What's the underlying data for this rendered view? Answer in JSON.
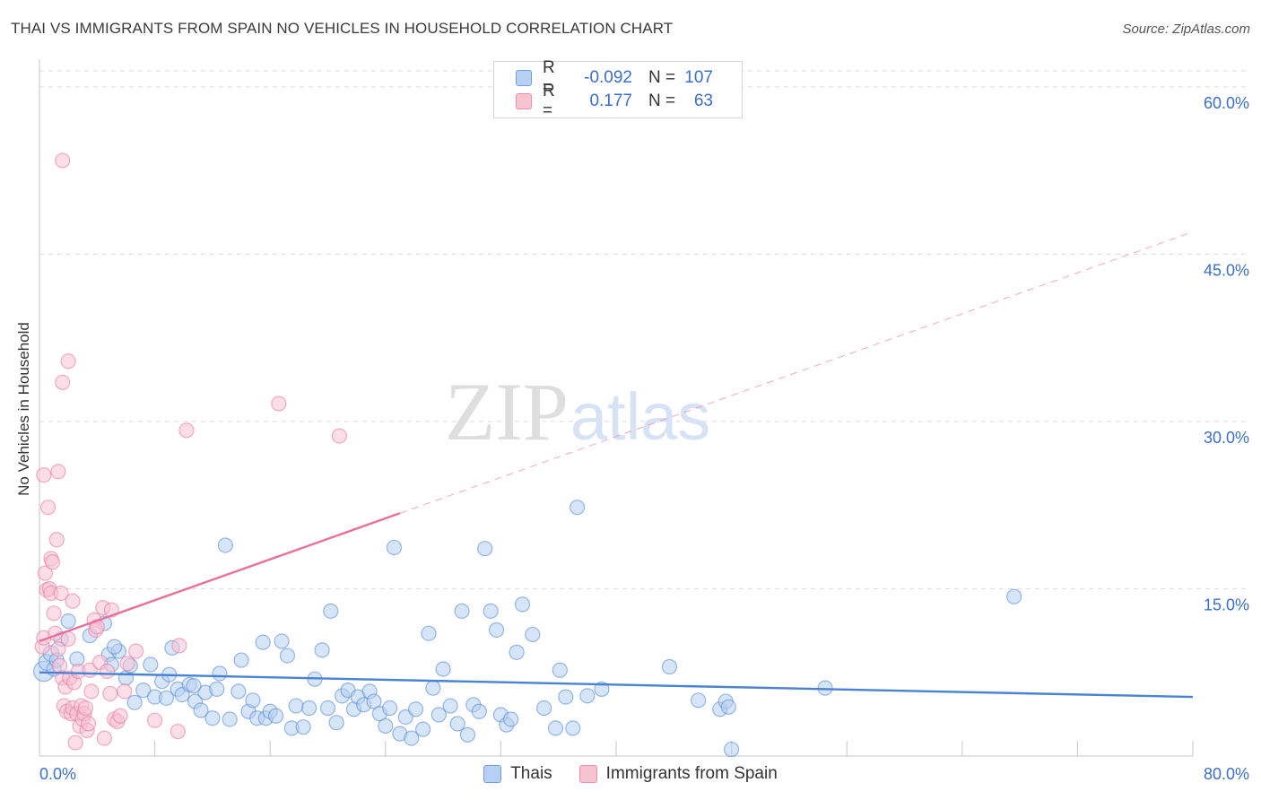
{
  "title": "THAI VS IMMIGRANTS FROM SPAIN NO VEHICLES IN HOUSEHOLD CORRELATION CHART",
  "source": "Source: ZipAtlas.com",
  "watermark": {
    "zip": "ZIP",
    "atlas": "atlas"
  },
  "legend": {
    "r_label": "R =",
    "n_label": "N =",
    "rows": [
      {
        "name": "Thais",
        "r": "-0.092",
        "n": "107",
        "fill": "#b7cff2",
        "stroke": "#6f9fe0"
      },
      {
        "name": "Immigrants from Spain",
        "r": "0.177",
        "n": "63",
        "fill": "#f7c3d3",
        "stroke": "#ec8fae"
      }
    ]
  },
  "chart_data": {
    "type": "scatter",
    "title": "THAI VS IMMIGRANTS FROM SPAIN NO VEHICLES IN HOUSEHOLD CORRELATION CHART",
    "xlabel": "",
    "ylabel": "No Vehicles in Household",
    "xlim": [
      0,
      80
    ],
    "ylim": [
      0,
      62
    ],
    "x_tick_labels": [
      {
        "value": 0,
        "label": "0.0%"
      },
      {
        "value": 80,
        "label": "80.0%"
      }
    ],
    "y_tick_labels": [
      {
        "value": 15,
        "label": "15.0%"
      },
      {
        "value": 30,
        "label": "30.0%"
      },
      {
        "value": 45,
        "label": "45.0%"
      },
      {
        "value": 60,
        "label": "60.0%"
      }
    ],
    "x_minor_ticks": [
      8,
      16,
      24,
      32,
      40,
      48,
      56,
      64,
      72,
      80
    ],
    "series": [
      {
        "name": "Thais",
        "color": "#4a83d4",
        "fill": "#b7cff2",
        "trend": {
          "x0": 0,
          "y0": 7.5,
          "x1": 80,
          "y1": 5.3,
          "dash_from": null
        },
        "points": [
          [
            0.3,
            7.6,
            1.4
          ],
          [
            0.5,
            8.4,
            1.1
          ],
          [
            0.8,
            9.2,
            1.1
          ],
          [
            1.0,
            7.8,
            1.0
          ],
          [
            1.2,
            8.6,
            1.0
          ],
          [
            1.5,
            10.5,
            1.0
          ],
          [
            2.0,
            12.1,
            1.0
          ],
          [
            2.6,
            8.7,
            1.0
          ],
          [
            3.5,
            10.8,
            1.0
          ],
          [
            4.5,
            11.9,
            1.0
          ],
          [
            4.8,
            9.1,
            1.0
          ],
          [
            5.0,
            8.2,
            1.0
          ],
          [
            5.5,
            9.4,
            1.0
          ],
          [
            5.2,
            9.8,
            1.0
          ],
          [
            6.0,
            7.0,
            1.0
          ],
          [
            6.3,
            8.1,
            1.0
          ],
          [
            6.6,
            4.8,
            1.0
          ],
          [
            7.2,
            5.9,
            1.0
          ],
          [
            7.7,
            8.2,
            1.0
          ],
          [
            8.0,
            5.3,
            1.0
          ],
          [
            8.5,
            6.7,
            1.0
          ],
          [
            8.8,
            5.2,
            1.0
          ],
          [
            9.2,
            9.7,
            1.0
          ],
          [
            9.0,
            7.3,
            1.0
          ],
          [
            9.6,
            6.0,
            1.0
          ],
          [
            9.9,
            5.5,
            1.0
          ],
          [
            10.4,
            6.4,
            1.0
          ],
          [
            10.8,
            4.9,
            1.0
          ],
          [
            11.2,
            4.1,
            1.0
          ],
          [
            11.5,
            5.7,
            1.0
          ],
          [
            12.0,
            3.4,
            1.0
          ],
          [
            12.3,
            6.0,
            1.0
          ],
          [
            12.5,
            7.4,
            1.0
          ],
          [
            12.9,
            18.9,
            1.0
          ],
          [
            13.2,
            3.3,
            1.0
          ],
          [
            13.8,
            5.8,
            1.0
          ],
          [
            14.0,
            8.6,
            1.0
          ],
          [
            14.5,
            4.0,
            1.0
          ],
          [
            14.8,
            5.0,
            1.0
          ],
          [
            15.1,
            3.4,
            1.0
          ],
          [
            15.5,
            10.2,
            1.0
          ],
          [
            15.7,
            3.4,
            1.0
          ],
          [
            16.0,
            4.0,
            1.0
          ],
          [
            16.4,
            3.6,
            1.0
          ],
          [
            16.8,
            10.3,
            1.0
          ],
          [
            17.2,
            9.0,
            1.0
          ],
          [
            17.5,
            2.5,
            1.0
          ],
          [
            17.8,
            4.5,
            1.0
          ],
          [
            18.3,
            2.6,
            1.0
          ],
          [
            18.7,
            4.3,
            1.0
          ],
          [
            19.1,
            6.9,
            1.0
          ],
          [
            19.6,
            9.5,
            1.0
          ],
          [
            20.0,
            4.3,
            1.0
          ],
          [
            20.2,
            13.0,
            1.0
          ],
          [
            20.6,
            3.0,
            1.0
          ],
          [
            21.0,
            5.4,
            1.0
          ],
          [
            21.4,
            5.9,
            1.0
          ],
          [
            21.8,
            4.2,
            1.0
          ],
          [
            22.1,
            5.3,
            1.0
          ],
          [
            22.5,
            4.6,
            1.0
          ],
          [
            22.9,
            5.8,
            1.0
          ],
          [
            23.2,
            4.9,
            1.0
          ],
          [
            23.6,
            3.8,
            1.0
          ],
          [
            24.0,
            2.7,
            1.0
          ],
          [
            24.3,
            4.3,
            1.0
          ],
          [
            24.6,
            18.7,
            1.0
          ],
          [
            25.0,
            2.0,
            1.0
          ],
          [
            25.4,
            3.5,
            1.0
          ],
          [
            25.8,
            1.6,
            1.0
          ],
          [
            26.1,
            4.2,
            1.0
          ],
          [
            26.6,
            2.4,
            1.0
          ],
          [
            27.0,
            11.0,
            1.0
          ],
          [
            27.3,
            6.1,
            1.0
          ],
          [
            27.7,
            3.7,
            1.0
          ],
          [
            28.0,
            7.8,
            1.0
          ],
          [
            28.5,
            4.5,
            1.0
          ],
          [
            29.0,
            2.9,
            1.0
          ],
          [
            29.3,
            13.0,
            1.0
          ],
          [
            29.7,
            1.9,
            1.0
          ],
          [
            30.1,
            4.6,
            1.0
          ],
          [
            30.5,
            4.0,
            1.0
          ],
          [
            30.9,
            18.6,
            1.0
          ],
          [
            31.3,
            13.0,
            1.0
          ],
          [
            31.7,
            11.3,
            1.0
          ],
          [
            32.0,
            3.7,
            1.0
          ],
          [
            32.4,
            2.8,
            1.0
          ],
          [
            32.7,
            3.3,
            1.0
          ],
          [
            33.1,
            9.3,
            1.0
          ],
          [
            33.5,
            13.6,
            1.0
          ],
          [
            34.2,
            10.9,
            1.0
          ],
          [
            35.0,
            4.3,
            1.0
          ],
          [
            35.8,
            2.5,
            1.0
          ],
          [
            36.1,
            7.7,
            1.0
          ],
          [
            36.5,
            5.3,
            1.0
          ],
          [
            37.0,
            2.5,
            1.0
          ],
          [
            37.3,
            22.3,
            1.0
          ],
          [
            38.0,
            5.4,
            1.0
          ],
          [
            39.0,
            6.0,
            1.0
          ],
          [
            43.7,
            8.0,
            1.0
          ],
          [
            45.7,
            5.0,
            1.0
          ],
          [
            47.2,
            4.2,
            1.0
          ],
          [
            47.6,
            4.9,
            1.0
          ],
          [
            47.8,
            4.4,
            1.0
          ],
          [
            48.0,
            0.6,
            1.0
          ],
          [
            54.5,
            6.1,
            1.0
          ],
          [
            67.6,
            14.3,
            1.0
          ],
          [
            10.7,
            6.3,
            1.0
          ]
        ]
      },
      {
        "name": "Immigrants from Spain",
        "color": "#e8709a",
        "fill": "#f7c3d3",
        "trend": {
          "x0": 0,
          "y0": 10.3,
          "x1": 80,
          "y1": 47.0,
          "dash_from": 25
        },
        "points": [
          [
            0.2,
            9.8,
            1.0
          ],
          [
            0.3,
            10.6,
            1.0
          ],
          [
            0.4,
            16.4,
            1.0
          ],
          [
            0.3,
            25.2,
            1.0
          ],
          [
            0.6,
            22.3,
            1.0
          ],
          [
            0.5,
            14.9,
            1.0
          ],
          [
            0.7,
            15.0,
            1.0
          ],
          [
            0.8,
            14.6,
            1.0
          ],
          [
            0.8,
            17.7,
            1.0
          ],
          [
            0.9,
            17.4,
            1.0
          ],
          [
            1.0,
            12.8,
            1.0
          ],
          [
            1.1,
            11.0,
            1.0
          ],
          [
            1.2,
            19.4,
            1.0
          ],
          [
            1.3,
            25.5,
            1.0
          ],
          [
            1.3,
            9.6,
            1.0
          ],
          [
            1.4,
            8.1,
            1.0
          ],
          [
            1.5,
            14.6,
            1.0
          ],
          [
            1.6,
            7.0,
            1.0
          ],
          [
            1.6,
            33.5,
            1.0
          ],
          [
            1.7,
            4.5,
            1.0
          ],
          [
            1.8,
            6.2,
            1.0
          ],
          [
            1.9,
            4.0,
            1.0
          ],
          [
            2.0,
            35.4,
            1.0
          ],
          [
            2.0,
            10.5,
            1.0
          ],
          [
            2.1,
            7.0,
            1.0
          ],
          [
            2.2,
            3.8,
            1.0
          ],
          [
            2.3,
            4.3,
            1.0
          ],
          [
            2.3,
            13.9,
            1.0
          ],
          [
            2.4,
            6.6,
            1.0
          ],
          [
            2.5,
            1.2,
            1.0
          ],
          [
            2.6,
            3.8,
            1.0
          ],
          [
            2.7,
            7.6,
            1.0
          ],
          [
            2.8,
            2.7,
            1.0
          ],
          [
            2.9,
            4.5,
            1.0
          ],
          [
            3.0,
            3.3,
            1.0
          ],
          [
            3.1,
            3.8,
            1.0
          ],
          [
            3.2,
            4.3,
            1.0
          ],
          [
            3.3,
            2.3,
            1.0
          ],
          [
            3.4,
            2.9,
            1.0
          ],
          [
            3.5,
            7.7,
            1.0
          ],
          [
            3.6,
            5.8,
            1.0
          ],
          [
            3.8,
            12.2,
            1.0
          ],
          [
            3.9,
            11.3,
            1.0
          ],
          [
            4.0,
            11.6,
            1.0
          ],
          [
            4.2,
            8.4,
            1.0
          ],
          [
            4.4,
            13.3,
            1.0
          ],
          [
            4.5,
            1.6,
            1.0
          ],
          [
            4.7,
            7.6,
            1.0
          ],
          [
            4.9,
            5.6,
            1.0
          ],
          [
            5.0,
            13.1,
            1.0
          ],
          [
            5.2,
            3.3,
            1.0
          ],
          [
            5.4,
            3.1,
            1.0
          ],
          [
            5.6,
            3.6,
            1.0
          ],
          [
            5.9,
            5.8,
            1.0
          ],
          [
            6.1,
            8.3,
            1.0
          ],
          [
            6.7,
            9.4,
            1.0
          ],
          [
            8.0,
            3.2,
            1.0
          ],
          [
            9.6,
            2.2,
            1.0
          ],
          [
            9.7,
            9.9,
            1.0
          ],
          [
            10.2,
            29.2,
            1.0
          ],
          [
            16.6,
            31.6,
            1.0
          ],
          [
            20.8,
            28.7,
            1.0
          ],
          [
            1.6,
            53.4,
            1.0
          ]
        ]
      }
    ]
  }
}
